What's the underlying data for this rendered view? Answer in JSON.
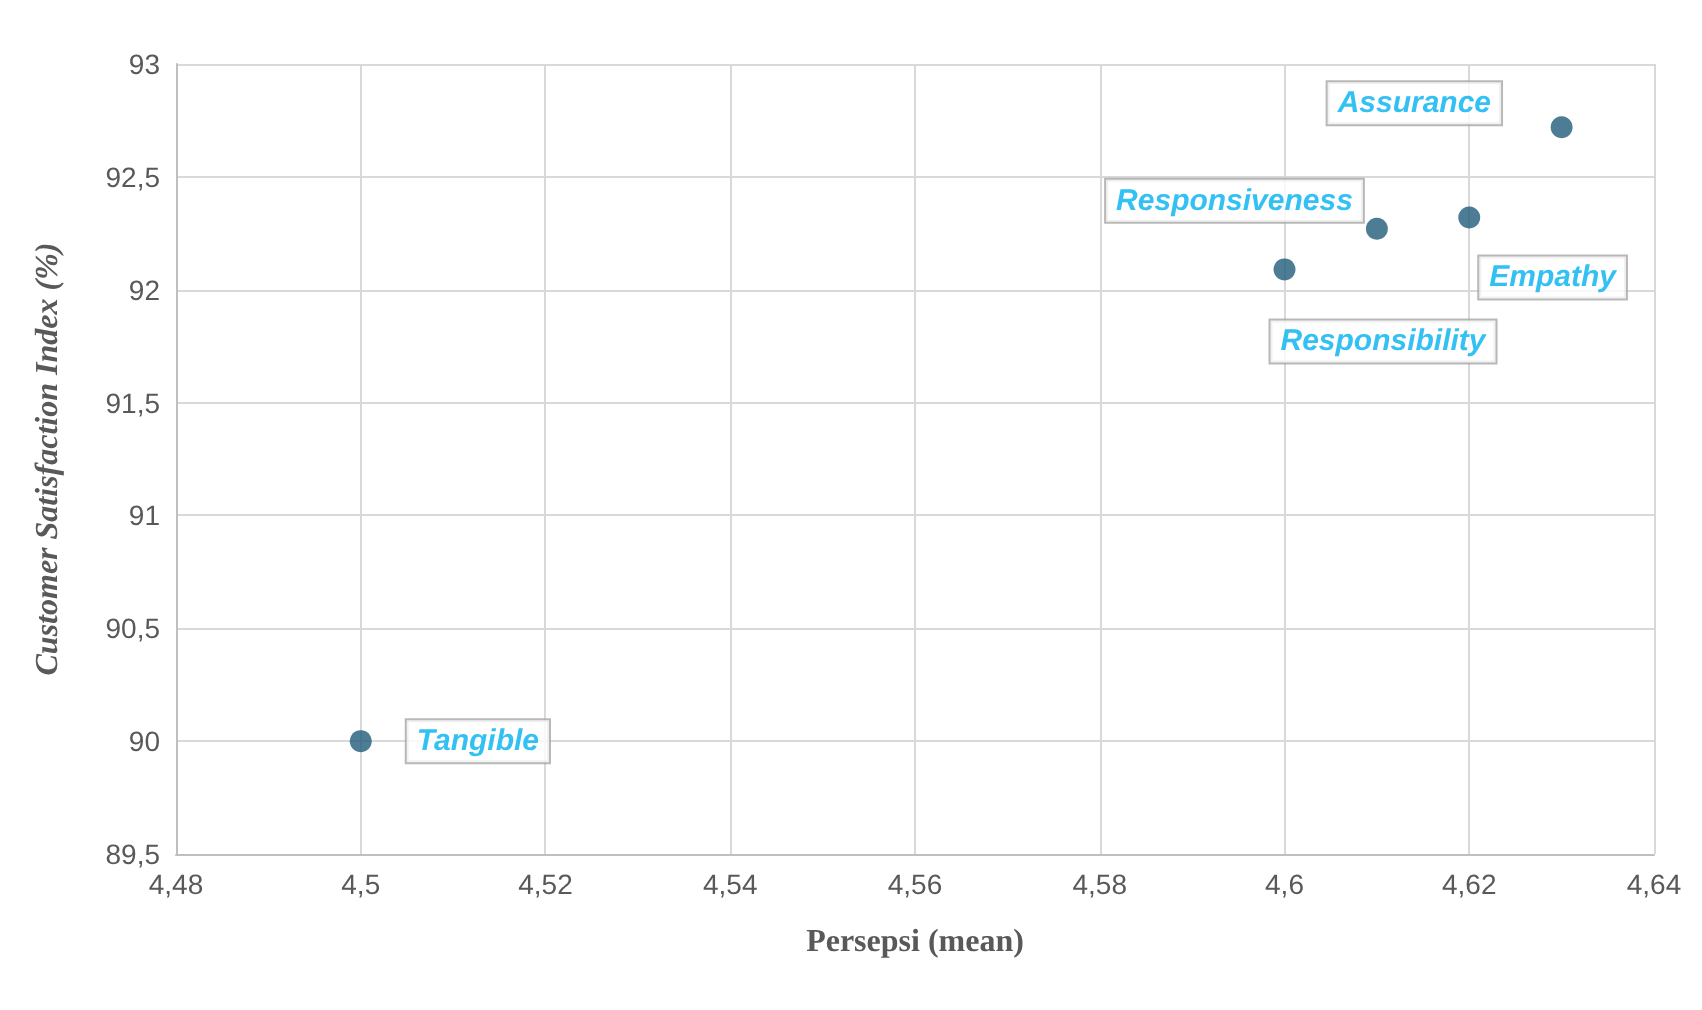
{
  "chart_data": {
    "type": "scatter",
    "xlabel": "Persepsi (mean)",
    "ylabel": "Customer Satisfaction Index (%)",
    "x": [
      4.5,
      4.6,
      4.61,
      4.62,
      4.63
    ],
    "series": [
      {
        "color": "#1f5c7a",
        "values": [
          90.0,
          92.09,
          92.27,
          92.32,
          92.72
        ]
      }
    ],
    "annotations": [
      {
        "text": "Tangible",
        "x": 4.5,
        "y": 90.0
      },
      {
        "text": "Responsibility",
        "x": 4.6,
        "y": 92.09
      },
      {
        "text": "Responsiveness",
        "x": 4.61,
        "y": 92.27
      },
      {
        "text": "Empathy",
        "x": 4.62,
        "y": 92.32
      },
      {
        "text": "Assurance",
        "x": 4.63,
        "y": 92.72
      }
    ],
    "xlim": [
      4.48,
      4.64
    ],
    "xticks": [
      {
        "value": 4.48,
        "label": "4,48"
      },
      {
        "value": 4.5,
        "label": "4,5"
      },
      {
        "value": 4.52,
        "label": "4,52"
      },
      {
        "value": 4.54,
        "label": "4,54"
      },
      {
        "value": 4.56,
        "label": "4,56"
      },
      {
        "value": 4.58,
        "label": "4,58"
      },
      {
        "value": 4.6,
        "label": "4,6"
      },
      {
        "value": 4.62,
        "label": "4,62"
      },
      {
        "value": 4.64,
        "label": "4,64"
      }
    ],
    "ylim": [
      89.5,
      93
    ],
    "yticks": [
      {
        "value": 89.5,
        "label": "89,5"
      },
      90,
      {
        "value": 90.5,
        "label": "90,5"
      },
      91,
      {
        "value": 91.5,
        "label": "91,5"
      },
      92,
      {
        "value": 92.5,
        "label": "92,5"
      },
      93
    ],
    "grid": true,
    "marker": "circle"
  }
}
